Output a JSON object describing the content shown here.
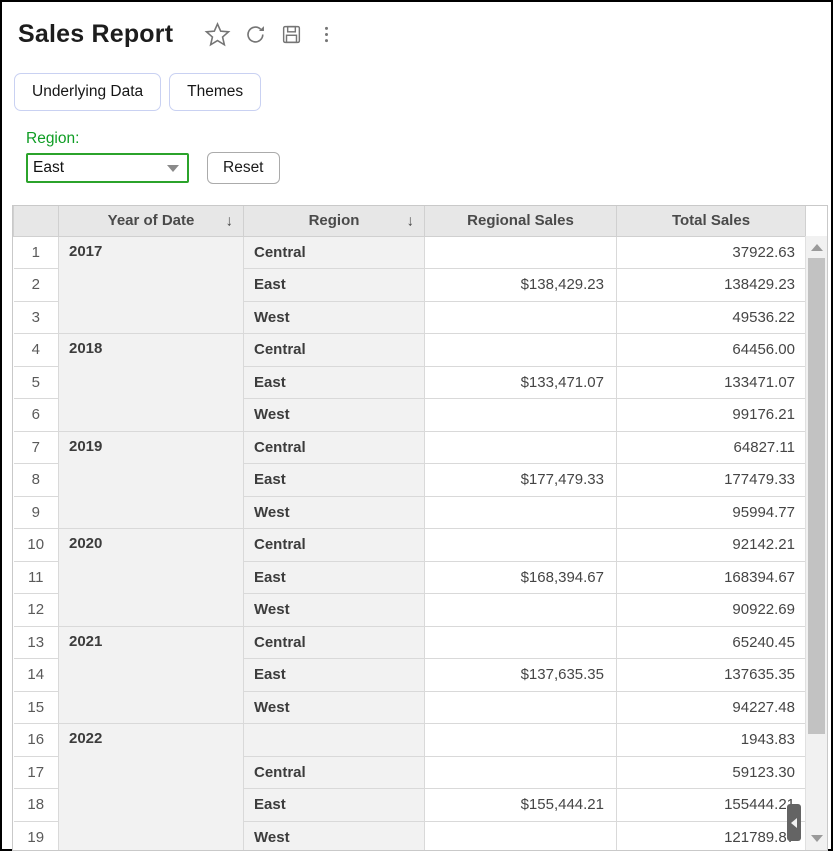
{
  "header": {
    "title": "Sales Report",
    "icons": [
      "star-icon",
      "refresh-icon",
      "save-icon",
      "kebab-menu-icon"
    ]
  },
  "toolbar": {
    "buttons": [
      {
        "label": "Underlying Data"
      },
      {
        "label": "Themes"
      }
    ]
  },
  "filter": {
    "label": "Region:",
    "selected_value": "East",
    "reset_label": "Reset"
  },
  "table": {
    "sort_glyph": "↓",
    "columns": [
      {
        "label": "Year of Date",
        "sorted": true
      },
      {
        "label": "Region",
        "sorted": true
      },
      {
        "label": "Regional Sales",
        "sorted": false
      },
      {
        "label": "Total Sales",
        "sorted": false
      }
    ],
    "rows": [
      {
        "num": "1",
        "year": "2017",
        "year_span": 3,
        "region": "Central",
        "regional_sales": "",
        "total_sales": "37922.63"
      },
      {
        "num": "2",
        "region": "East",
        "regional_sales": "$138,429.23",
        "total_sales": "138429.23"
      },
      {
        "num": "3",
        "region": "West",
        "regional_sales": "",
        "total_sales": "49536.22"
      },
      {
        "num": "4",
        "year": "2018",
        "year_span": 3,
        "region": "Central",
        "regional_sales": "",
        "total_sales": "64456.00"
      },
      {
        "num": "5",
        "region": "East",
        "regional_sales": "$133,471.07",
        "total_sales": "133471.07"
      },
      {
        "num": "6",
        "region": "West",
        "regional_sales": "",
        "total_sales": "99176.21"
      },
      {
        "num": "7",
        "year": "2019",
        "year_span": 3,
        "region": "Central",
        "regional_sales": "",
        "total_sales": "64827.11"
      },
      {
        "num": "8",
        "region": "East",
        "regional_sales": "$177,479.33",
        "total_sales": "177479.33"
      },
      {
        "num": "9",
        "region": "West",
        "regional_sales": "",
        "total_sales": "95994.77"
      },
      {
        "num": "10",
        "year": "2020",
        "year_span": 3,
        "region": "Central",
        "regional_sales": "",
        "total_sales": "92142.21"
      },
      {
        "num": "11",
        "region": "East",
        "regional_sales": "$168,394.67",
        "total_sales": "168394.67"
      },
      {
        "num": "12",
        "region": "West",
        "regional_sales": "",
        "total_sales": "90922.69"
      },
      {
        "num": "13",
        "year": "2021",
        "year_span": 3,
        "region": "Central",
        "regional_sales": "",
        "total_sales": "65240.45"
      },
      {
        "num": "14",
        "region": "East",
        "regional_sales": "$137,635.35",
        "total_sales": "137635.35"
      },
      {
        "num": "15",
        "region": "West",
        "regional_sales": "",
        "total_sales": "94227.48"
      },
      {
        "num": "16",
        "year": "2022",
        "year_span": 4,
        "region": "",
        "regional_sales": "",
        "total_sales": "1943.83"
      },
      {
        "num": "17",
        "region": "Central",
        "regional_sales": "",
        "total_sales": "59123.30"
      },
      {
        "num": "18",
        "region": "East",
        "regional_sales": "$155,444.21",
        "total_sales": "155444.21"
      },
      {
        "num": "19",
        "region": "West",
        "regional_sales": "",
        "total_sales": "121789.87"
      }
    ]
  },
  "colors": {
    "accent_green": "#0f9d24",
    "select_border": "#2ba32b",
    "button_border": "#c9d1f2",
    "table_header_bg": "#e7e7e7",
    "grouped_cell_bg": "#f2f2f2",
    "grid_border": "#d9d9d9",
    "scroll_thumb": "#c2c2c2",
    "handle_bg": "#646464"
  }
}
